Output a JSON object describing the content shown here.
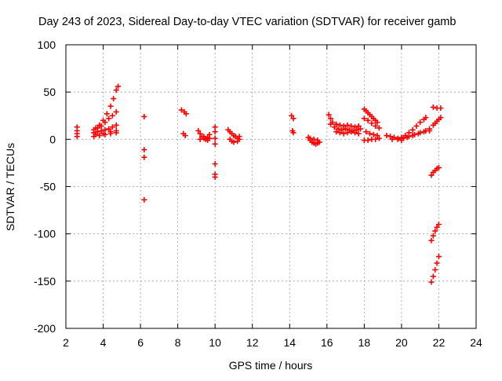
{
  "chart_data": {
    "type": "scatter",
    "title": "Day 243 of 2023, Sidereal Day-to-day VTEC variation (SDTVAR) for receiver gamb",
    "xlabel": "GPS time / hours",
    "ylabel": "SDTVAR / TECUs",
    "xlim": [
      2,
      24
    ],
    "ylim": [
      -200,
      100
    ],
    "xticks": [
      2,
      4,
      6,
      8,
      10,
      12,
      14,
      16,
      18,
      20,
      22,
      24
    ],
    "yticks": [
      -200,
      -150,
      -100,
      -50,
      0,
      50,
      100
    ],
    "grid": true,
    "marker": "+",
    "series": [
      {
        "name": "SDTVAR",
        "color": "#ff0000",
        "points": [
          [
            2.6,
            13
          ],
          [
            2.6,
            9
          ],
          [
            2.6,
            6
          ],
          [
            2.6,
            3
          ],
          [
            3.6,
            12
          ],
          [
            3.8,
            15
          ],
          [
            4.0,
            20
          ],
          [
            4.2,
            27
          ],
          [
            4.4,
            35
          ],
          [
            4.55,
            43
          ],
          [
            4.7,
            52
          ],
          [
            4.8,
            56
          ],
          [
            3.5,
            10
          ],
          [
            3.7,
            12
          ],
          [
            3.9,
            14
          ],
          [
            4.1,
            18
          ],
          [
            4.3,
            22
          ],
          [
            4.5,
            25
          ],
          [
            4.7,
            29
          ],
          [
            3.5,
            7
          ],
          [
            3.7,
            8
          ],
          [
            3.9,
            9
          ],
          [
            4.1,
            10
          ],
          [
            4.3,
            11
          ],
          [
            4.5,
            13
          ],
          [
            4.7,
            15
          ],
          [
            3.5,
            3
          ],
          [
            3.8,
            4
          ],
          [
            4.1,
            5
          ],
          [
            4.4,
            6
          ],
          [
            4.7,
            7
          ],
          [
            3.6,
            5
          ],
          [
            4.0,
            6
          ],
          [
            4.4,
            8
          ],
          [
            4.7,
            9
          ],
          [
            6.2,
            24
          ],
          [
            6.2,
            -11
          ],
          [
            6.2,
            -19
          ],
          [
            6.2,
            -64
          ],
          [
            8.2,
            31
          ],
          [
            8.35,
            29
          ],
          [
            8.45,
            27
          ],
          [
            8.3,
            6
          ],
          [
            8.4,
            4
          ],
          [
            9.1,
            9
          ],
          [
            9.2,
            6
          ],
          [
            9.3,
            3
          ],
          [
            9.4,
            1
          ],
          [
            9.5,
            0
          ],
          [
            9.6,
            2
          ],
          [
            9.7,
            5
          ],
          [
            9.2,
            0
          ],
          [
            9.4,
            3
          ],
          [
            9.6,
            -1
          ],
          [
            9.7,
            1
          ],
          [
            10.0,
            13
          ],
          [
            10.0,
            8
          ],
          [
            10.0,
            1
          ],
          [
            10.0,
            -5
          ],
          [
            10.0,
            -26
          ],
          [
            10.0,
            -37
          ],
          [
            10.0,
            -40
          ],
          [
            10.7,
            10
          ],
          [
            10.8,
            8
          ],
          [
            10.9,
            6
          ],
          [
            11.0,
            4
          ],
          [
            11.1,
            3
          ],
          [
            11.2,
            1
          ],
          [
            11.3,
            3
          ],
          [
            10.8,
            0
          ],
          [
            10.9,
            -2
          ],
          [
            11.0,
            -3
          ],
          [
            11.2,
            -2
          ],
          [
            11.3,
            0
          ],
          [
            14.1,
            25
          ],
          [
            14.2,
            22
          ],
          [
            14.15,
            9
          ],
          [
            14.2,
            7
          ],
          [
            15.0,
            2
          ],
          [
            15.1,
            -1
          ],
          [
            15.2,
            -3
          ],
          [
            15.3,
            -4
          ],
          [
            15.4,
            -5
          ],
          [
            15.5,
            -4
          ],
          [
            15.6,
            -3
          ],
          [
            15.1,
            1
          ],
          [
            15.3,
            0
          ],
          [
            15.5,
            -1
          ],
          [
            16.1,
            26
          ],
          [
            16.2,
            22
          ],
          [
            16.3,
            18
          ],
          [
            16.5,
            16
          ],
          [
            16.7,
            15
          ],
          [
            16.9,
            14
          ],
          [
            17.1,
            15
          ],
          [
            17.3,
            14
          ],
          [
            17.5,
            13
          ],
          [
            17.7,
            14
          ],
          [
            16.2,
            16
          ],
          [
            16.4,
            13
          ],
          [
            16.6,
            11
          ],
          [
            16.8,
            10
          ],
          [
            17.0,
            11
          ],
          [
            17.2,
            10
          ],
          [
            17.4,
            9
          ],
          [
            17.6,
            10
          ],
          [
            17.8,
            11
          ],
          [
            16.5,
            8
          ],
          [
            16.7,
            7
          ],
          [
            16.9,
            6
          ],
          [
            17.1,
            7
          ],
          [
            17.3,
            8
          ],
          [
            17.5,
            7
          ],
          [
            17.7,
            6
          ],
          [
            18.0,
            32
          ],
          [
            18.1,
            30
          ],
          [
            18.2,
            28
          ],
          [
            18.3,
            26
          ],
          [
            18.4,
            24
          ],
          [
            18.5,
            22
          ],
          [
            18.6,
            20
          ],
          [
            18.7,
            18
          ],
          [
            18.0,
            22
          ],
          [
            18.2,
            20
          ],
          [
            18.4,
            17
          ],
          [
            18.6,
            14
          ],
          [
            18.8,
            12
          ],
          [
            18.1,
            8
          ],
          [
            18.3,
            6
          ],
          [
            18.5,
            5
          ],
          [
            18.7,
            4
          ],
          [
            18.0,
            -1
          ],
          [
            18.2,
            -1
          ],
          [
            18.4,
            0
          ],
          [
            18.6,
            0
          ],
          [
            18.8,
            1
          ],
          [
            19.2,
            4
          ],
          [
            19.4,
            3
          ],
          [
            19.6,
            2
          ],
          [
            19.8,
            1
          ],
          [
            20.0,
            2
          ],
          [
            20.2,
            4
          ],
          [
            20.4,
            7
          ],
          [
            20.6,
            10
          ],
          [
            20.8,
            14
          ],
          [
            21.0,
            18
          ],
          [
            21.2,
            21
          ],
          [
            21.3,
            23
          ],
          [
            19.5,
            0
          ],
          [
            19.8,
            0
          ],
          [
            20.1,
            1
          ],
          [
            20.4,
            3
          ],
          [
            20.7,
            5
          ],
          [
            21.0,
            7
          ],
          [
            21.3,
            9
          ],
          [
            21.5,
            11
          ],
          [
            20.0,
            -1
          ],
          [
            20.3,
            2
          ],
          [
            20.6,
            4
          ],
          [
            20.9,
            6
          ],
          [
            21.2,
            8
          ],
          [
            21.5,
            9
          ],
          [
            21.7,
            15
          ],
          [
            21.8,
            17
          ],
          [
            21.9,
            19
          ],
          [
            22.0,
            21
          ],
          [
            22.1,
            23
          ],
          [
            21.7,
            34
          ],
          [
            21.9,
            33
          ],
          [
            22.1,
            33
          ],
          [
            21.6,
            -38
          ],
          [
            21.7,
            -35
          ],
          [
            21.8,
            -33
          ],
          [
            21.9,
            -31
          ],
          [
            22.0,
            -30
          ],
          [
            21.6,
            -107
          ],
          [
            21.7,
            -102
          ],
          [
            21.8,
            -97
          ],
          [
            21.9,
            -93
          ],
          [
            22.0,
            -90
          ],
          [
            21.6,
            -151
          ],
          [
            21.7,
            -145
          ],
          [
            21.8,
            -138
          ],
          [
            21.9,
            -131
          ],
          [
            22.0,
            -124
          ]
        ]
      }
    ]
  }
}
